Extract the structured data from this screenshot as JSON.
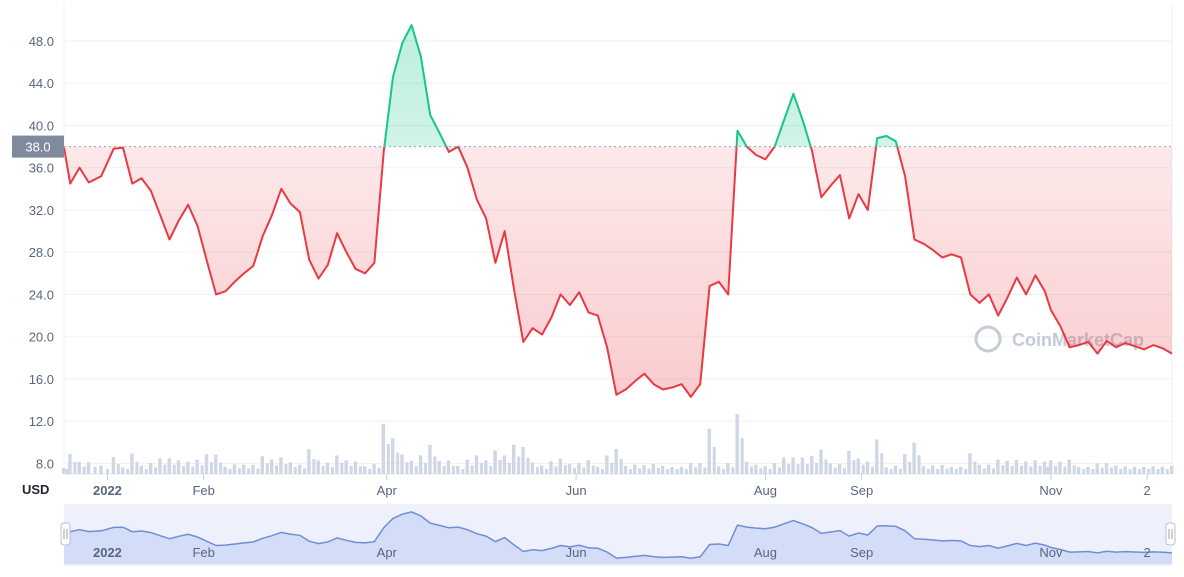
{
  "chart_data": {
    "type": "area",
    "unit_label": "USD",
    "reference_value": 38.0,
    "reference_label": "38.0",
    "y_ticks": [
      "8.0",
      "12.0",
      "16.0",
      "20.0",
      "24.0",
      "28.0",
      "32.0",
      "36.0",
      "40.0",
      "44.0",
      "48.0"
    ],
    "y_tick_values": [
      8,
      12,
      16,
      20,
      24,
      28,
      32,
      36,
      40,
      44,
      48
    ],
    "ylim": [
      7.0,
      51.5
    ],
    "x_ticks": [
      {
        "label": "2022",
        "date": "2022-01-01",
        "bold": true
      },
      {
        "label": "Feb",
        "date": "2022-02-01",
        "bold": false
      },
      {
        "label": "Apr",
        "date": "2022-04-01",
        "bold": false
      },
      {
        "label": "Jun",
        "date": "2022-06-01",
        "bold": false
      },
      {
        "label": "Aug",
        "date": "2022-08-01",
        "bold": false
      },
      {
        "label": "Sep",
        "date": "2022-09-01",
        "bold": false
      },
      {
        "label": "Nov",
        "date": "2022-11-01",
        "bold": false
      },
      {
        "label": "2",
        "date": "2022-12-02",
        "bold": false
      }
    ],
    "x_range": [
      "2021-12-18",
      "2022-12-10"
    ],
    "colors": {
      "above": "#16c784",
      "below": "#ea3943",
      "volume": "#cfd6e4",
      "navigator_line": "#6f8ed6",
      "navigator_fill": "#e8edfb"
    },
    "grid": true,
    "watermark": "CoinMarketCap",
    "navigator_labels": [
      "2022",
      "Feb",
      "Apr",
      "Jun",
      "Aug",
      "Sep",
      "Nov",
      "2"
    ],
    "price_series": [
      [
        "2021-12-18",
        37.9
      ],
      [
        "2021-12-20",
        34.5
      ],
      [
        "2021-12-23",
        36.0
      ],
      [
        "2021-12-26",
        34.6
      ],
      [
        "2021-12-30",
        35.2
      ],
      [
        "2022-01-03",
        37.8
      ],
      [
        "2022-01-06",
        37.9
      ],
      [
        "2022-01-09",
        34.5
      ],
      [
        "2022-01-12",
        35.0
      ],
      [
        "2022-01-15",
        33.8
      ],
      [
        "2022-01-18",
        31.5
      ],
      [
        "2022-01-21",
        29.2
      ],
      [
        "2022-01-24",
        31.0
      ],
      [
        "2022-01-27",
        32.5
      ],
      [
        "2022-01-30",
        30.5
      ],
      [
        "2022-02-02",
        27.2
      ],
      [
        "2022-02-05",
        24.0
      ],
      [
        "2022-02-08",
        24.3
      ],
      [
        "2022-02-11",
        25.2
      ],
      [
        "2022-02-14",
        26.0
      ],
      [
        "2022-02-17",
        26.7
      ],
      [
        "2022-02-20",
        29.5
      ],
      [
        "2022-02-23",
        31.5
      ],
      [
        "2022-02-26",
        34.0
      ],
      [
        "2022-03-01",
        32.6
      ],
      [
        "2022-03-04",
        31.8
      ],
      [
        "2022-03-07",
        27.3
      ],
      [
        "2022-03-10",
        25.5
      ],
      [
        "2022-03-13",
        26.8
      ],
      [
        "2022-03-16",
        29.8
      ],
      [
        "2022-03-19",
        28.0
      ],
      [
        "2022-03-22",
        26.4
      ],
      [
        "2022-03-25",
        26.0
      ],
      [
        "2022-03-28",
        27.0
      ],
      [
        "2022-03-31",
        37.5
      ],
      [
        "2022-04-03",
        44.6
      ],
      [
        "2022-04-06",
        47.8
      ],
      [
        "2022-04-09",
        49.5
      ],
      [
        "2022-04-12",
        46.5
      ],
      [
        "2022-04-15",
        41.0
      ],
      [
        "2022-04-18",
        39.3
      ],
      [
        "2022-04-21",
        37.5
      ],
      [
        "2022-04-24",
        38.0
      ],
      [
        "2022-04-27",
        36.0
      ],
      [
        "2022-04-30",
        33.0
      ],
      [
        "2022-05-03",
        31.2
      ],
      [
        "2022-05-06",
        27.0
      ],
      [
        "2022-05-09",
        30.0
      ],
      [
        "2022-05-12",
        24.5
      ],
      [
        "2022-05-15",
        19.5
      ],
      [
        "2022-05-18",
        20.8
      ],
      [
        "2022-05-21",
        20.2
      ],
      [
        "2022-05-24",
        21.8
      ],
      [
        "2022-05-27",
        24.0
      ],
      [
        "2022-05-30",
        23.0
      ],
      [
        "2022-06-02",
        24.2
      ],
      [
        "2022-06-05",
        22.3
      ],
      [
        "2022-06-08",
        22.0
      ],
      [
        "2022-06-11",
        19.0
      ],
      [
        "2022-06-14",
        14.5
      ],
      [
        "2022-06-17",
        15.0
      ],
      [
        "2022-06-20",
        15.8
      ],
      [
        "2022-06-23",
        16.5
      ],
      [
        "2022-06-26",
        15.5
      ],
      [
        "2022-06-29",
        15.0
      ],
      [
        "2022-07-02",
        15.2
      ],
      [
        "2022-07-05",
        15.5
      ],
      [
        "2022-07-08",
        14.3
      ],
      [
        "2022-07-11",
        15.5
      ],
      [
        "2022-07-14",
        24.8
      ],
      [
        "2022-07-17",
        25.2
      ],
      [
        "2022-07-20",
        24.0
      ],
      [
        "2022-07-23",
        39.5
      ],
      [
        "2022-07-26",
        38.0
      ],
      [
        "2022-07-29",
        37.2
      ],
      [
        "2022-08-01",
        36.8
      ],
      [
        "2022-08-04",
        38.0
      ],
      [
        "2022-08-07",
        40.5
      ],
      [
        "2022-08-10",
        43.0
      ],
      [
        "2022-08-13",
        40.5
      ],
      [
        "2022-08-16",
        37.6
      ],
      [
        "2022-08-19",
        33.2
      ],
      [
        "2022-08-22",
        34.3
      ],
      [
        "2022-08-25",
        35.3
      ],
      [
        "2022-08-28",
        31.2
      ],
      [
        "2022-08-31",
        33.5
      ],
      [
        "2022-09-03",
        32.0
      ],
      [
        "2022-09-06",
        38.8
      ],
      [
        "2022-09-09",
        39.0
      ],
      [
        "2022-09-12",
        38.5
      ],
      [
        "2022-09-15",
        35.2
      ],
      [
        "2022-09-18",
        29.2
      ],
      [
        "2022-09-21",
        28.8
      ],
      [
        "2022-09-24",
        28.2
      ],
      [
        "2022-09-27",
        27.5
      ],
      [
        "2022-09-30",
        27.8
      ],
      [
        "2022-10-03",
        27.5
      ],
      [
        "2022-10-06",
        24.0
      ],
      [
        "2022-10-09",
        23.2
      ],
      [
        "2022-10-12",
        24.0
      ],
      [
        "2022-10-15",
        22.0
      ],
      [
        "2022-10-18",
        23.7
      ],
      [
        "2022-10-21",
        25.6
      ],
      [
        "2022-10-24",
        24.0
      ],
      [
        "2022-10-27",
        25.8
      ],
      [
        "2022-10-30",
        24.3
      ],
      [
        "2022-11-01",
        22.5
      ],
      [
        "2022-11-04",
        21.0
      ],
      [
        "2022-11-07",
        19.0
      ],
      [
        "2022-11-10",
        19.2
      ],
      [
        "2022-11-13",
        19.5
      ],
      [
        "2022-11-16",
        18.4
      ],
      [
        "2022-11-19",
        19.6
      ],
      [
        "2022-11-22",
        19.0
      ],
      [
        "2022-11-25",
        19.4
      ],
      [
        "2022-11-28",
        19.1
      ],
      [
        "2022-12-01",
        18.8
      ],
      [
        "2022-12-04",
        19.2
      ],
      [
        "2022-12-07",
        18.9
      ],
      [
        "2022-12-10",
        18.4
      ]
    ]
  }
}
